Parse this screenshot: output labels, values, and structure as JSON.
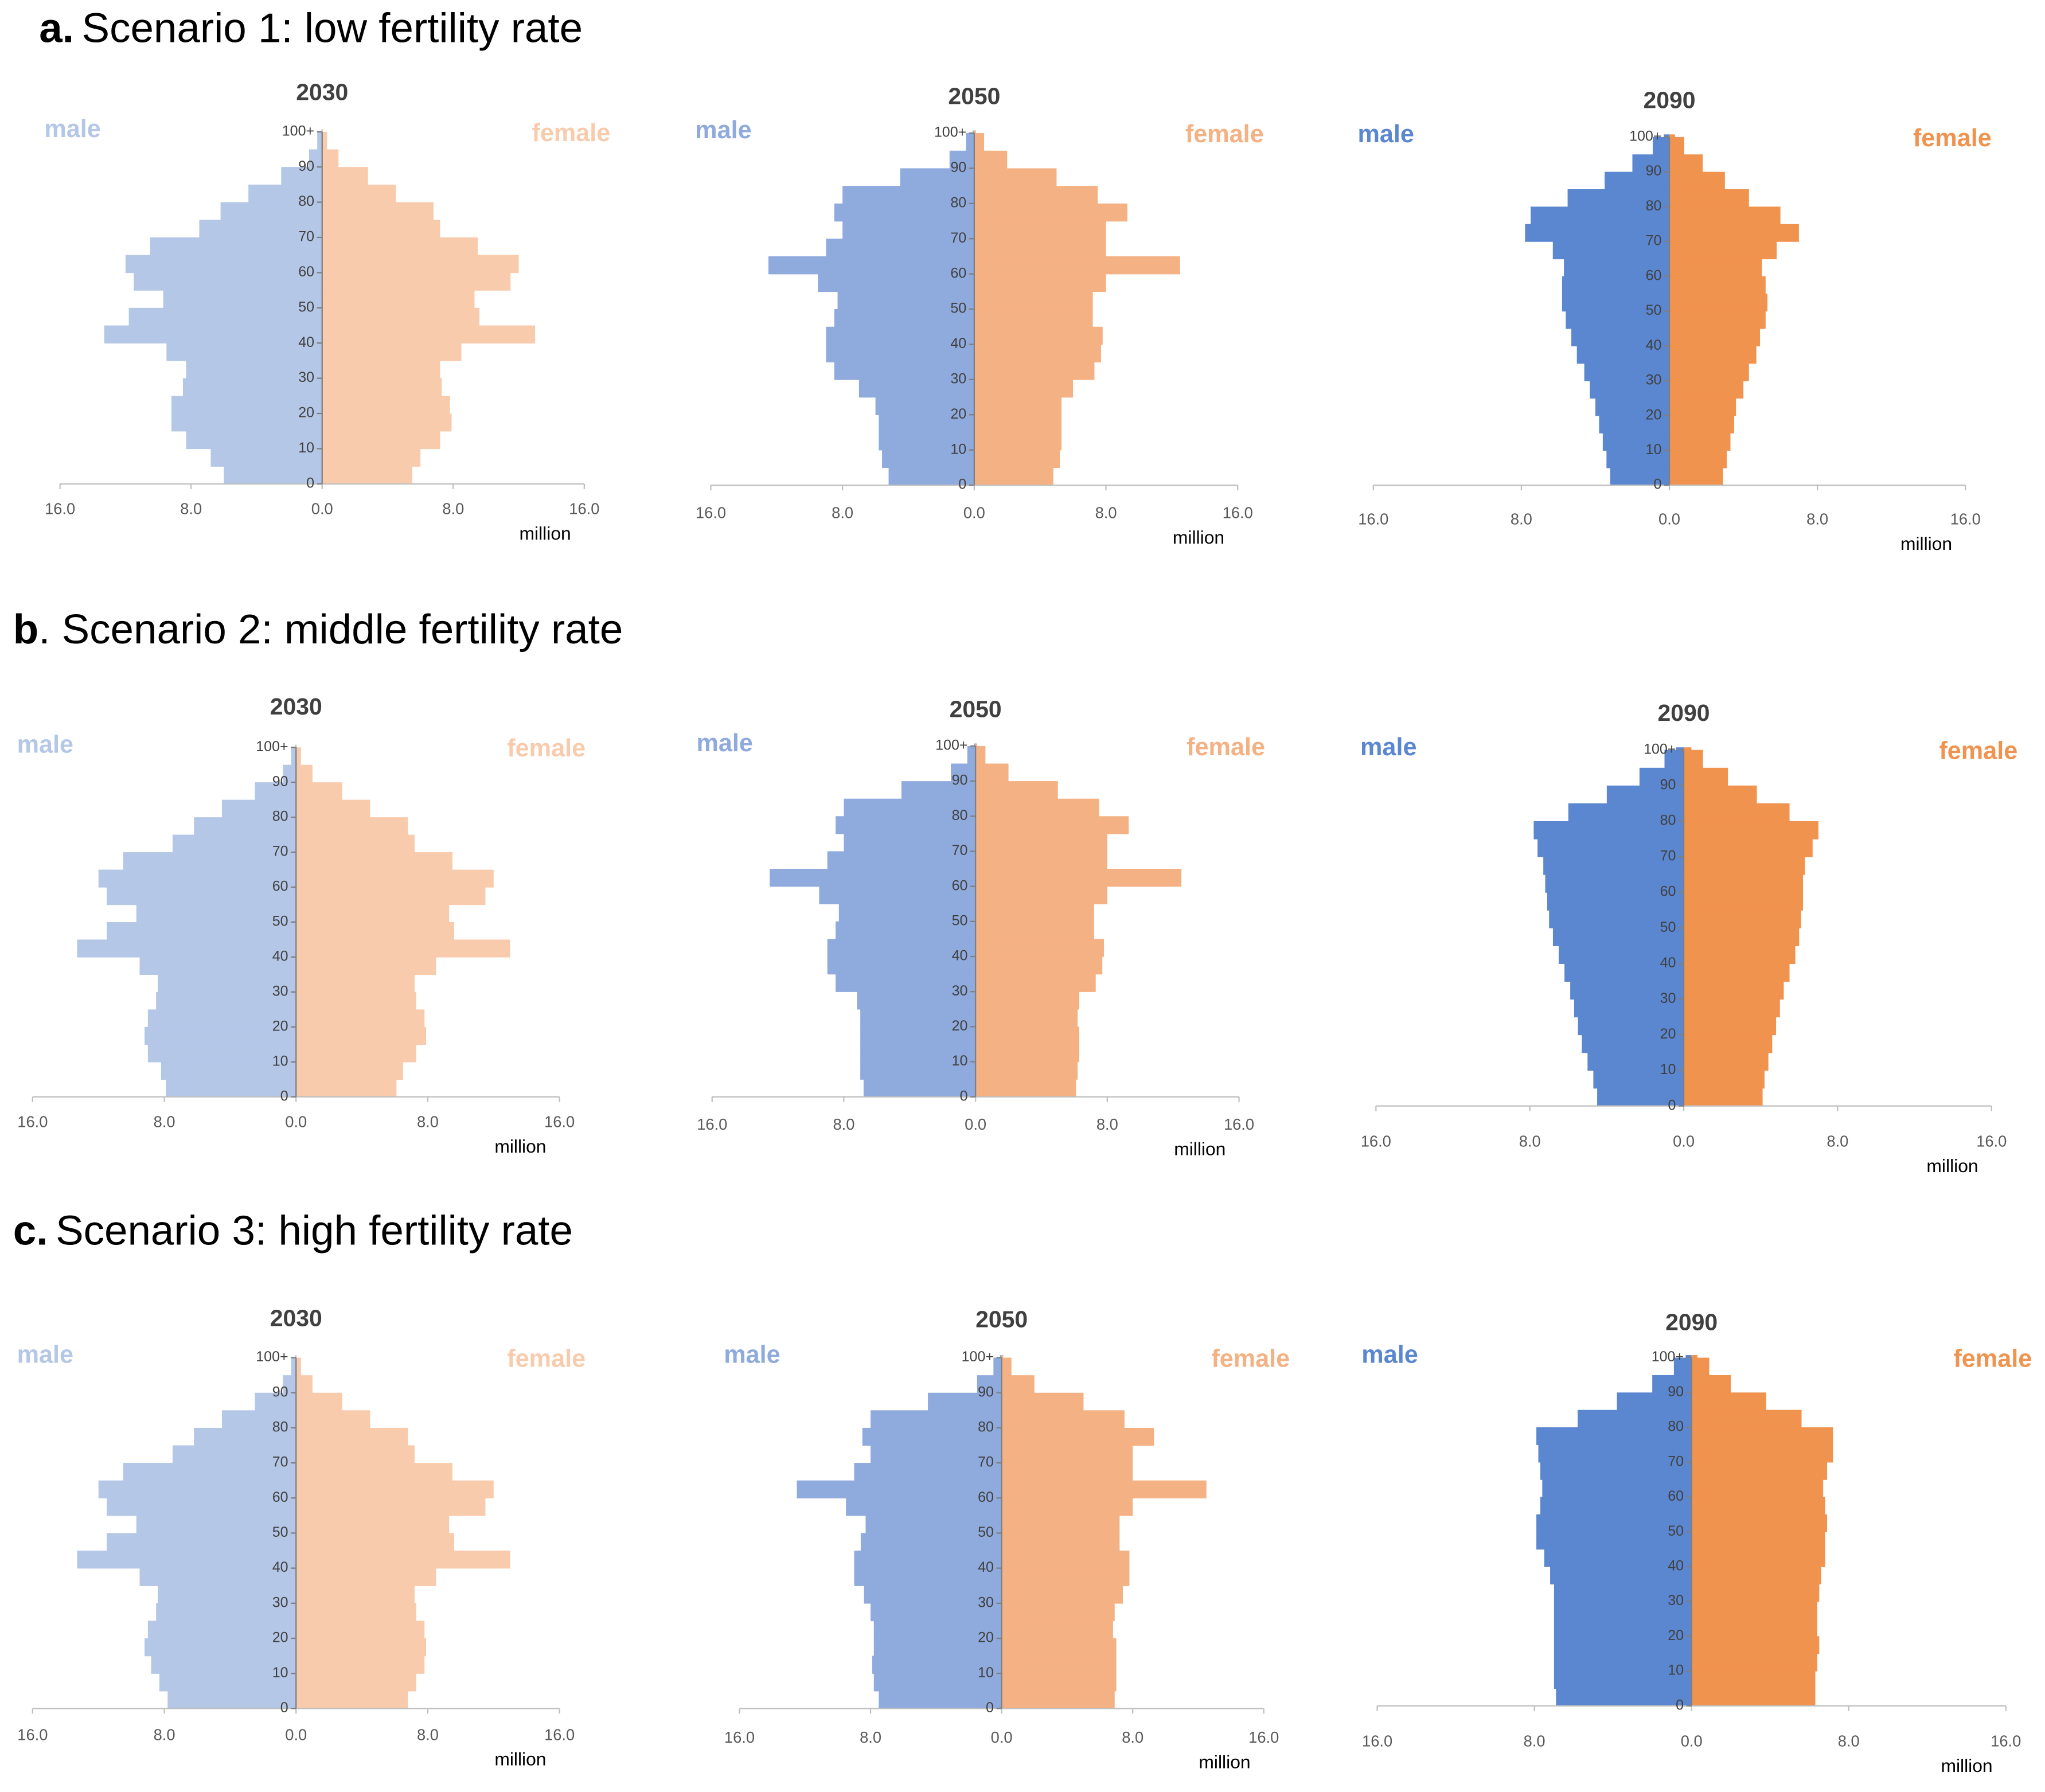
{
  "panels": [
    {
      "label": "a.",
      "title": "Scenario 1: low fertility rate"
    },
    {
      "label": "b",
      "title": ". Scenario 2: middle fertility rate"
    },
    {
      "label": "c.",
      "title": "Scenario 3: high fertility rate"
    }
  ],
  "chart_data": [
    {
      "type": "pyramid",
      "title": "2030",
      "xlabel": "million",
      "categories": [
        "0",
        null,
        "10",
        null,
        "20",
        null,
        "30",
        null,
        "40",
        null,
        "50",
        null,
        "60",
        null,
        "70",
        null,
        "80",
        null,
        "90",
        null,
        "100+"
      ],
      "xlim": [
        -16,
        16
      ],
      "xticks": [
        {
          "value": -16,
          "label": "16.0"
        },
        {
          "value": -8,
          "label": "8.0"
        },
        {
          "value": 0,
          "label": "0.0"
        },
        {
          "value": 8,
          "label": "8.0"
        },
        {
          "value": 16,
          "label": "16.0"
        }
      ],
      "series": [
        {
          "name": "male",
          "color": "#b4c7e7",
          "values": [
            6.0,
            6.8,
            8.3,
            9.2,
            9.2,
            8.5,
            8.3,
            9.5,
            13.3,
            11.8,
            9.7,
            11.5,
            12.0,
            10.5,
            7.5,
            6.2,
            4.5,
            2.5,
            0.8,
            0.3,
            0.05
          ]
        },
        {
          "name": "female",
          "color": "#f8cbad",
          "values": [
            5.5,
            6.0,
            7.2,
            7.9,
            7.8,
            7.3,
            7.2,
            8.5,
            13.0,
            9.6,
            9.3,
            11.5,
            12.0,
            9.5,
            7.2,
            6.8,
            4.5,
            2.8,
            1.0,
            0.3,
            0.05
          ]
        }
      ]
    },
    {
      "type": "pyramid",
      "title": "2050",
      "xlabel": "million",
      "categories": [
        "0",
        null,
        "10",
        null,
        "20",
        null,
        "30",
        null,
        "40",
        null,
        "50",
        null,
        "60",
        null,
        "70",
        null,
        "80",
        null,
        "90",
        null,
        "100+"
      ],
      "xlim": [
        -16,
        16
      ],
      "xticks": [
        {
          "value": -16,
          "label": "16.0"
        },
        {
          "value": -8,
          "label": "8.0"
        },
        {
          "value": 0,
          "label": "0.0"
        },
        {
          "value": 8,
          "label": "8.0"
        },
        {
          "value": 16,
          "label": "16.0"
        }
      ],
      "series": [
        {
          "name": "male",
          "color": "#8faadc",
          "values": [
            5.2,
            5.6,
            5.8,
            5.8,
            6.0,
            7.0,
            8.5,
            9.0,
            9.0,
            8.5,
            8.3,
            9.5,
            12.5,
            9.0,
            8.0,
            8.5,
            8.0,
            4.5,
            1.5,
            0.5,
            0.1
          ]
        },
        {
          "name": "female",
          "color": "#f4b183",
          "values": [
            4.8,
            5.2,
            5.3,
            5.3,
            5.3,
            6.0,
            7.3,
            7.7,
            7.8,
            7.2,
            7.2,
            8.0,
            12.5,
            8.0,
            8.0,
            9.3,
            7.5,
            5.0,
            2.0,
            0.6,
            0.1
          ]
        }
      ]
    },
    {
      "type": "pyramid",
      "title": "2090",
      "xlabel": "million",
      "categories": [
        "0",
        null,
        "10",
        null,
        "20",
        null,
        "30",
        null,
        "40",
        null,
        "50",
        null,
        "60",
        null,
        "70",
        null,
        "80",
        null,
        "90",
        null,
        "100+"
      ],
      "xlim": [
        -16,
        16
      ],
      "xticks": [
        {
          "value": -16,
          "label": "16.0"
        },
        {
          "value": -8,
          "label": "8.0"
        },
        {
          "value": 0,
          "label": "0.0"
        },
        {
          "value": 8,
          "label": "8.0"
        },
        {
          "value": 16,
          "label": "16.0"
        }
      ],
      "series": [
        {
          "name": "male",
          "color": "#5b87d0",
          "values": [
            3.2,
            3.4,
            3.6,
            3.8,
            4.0,
            4.3,
            4.6,
            5.0,
            5.3,
            5.6,
            5.8,
            5.8,
            5.7,
            6.3,
            7.8,
            7.5,
            5.5,
            3.5,
            2.0,
            0.9,
            0.3
          ]
        },
        {
          "name": "female",
          "color": "#f0934f",
          "values": [
            2.9,
            3.1,
            3.3,
            3.5,
            3.6,
            4.0,
            4.3,
            4.7,
            4.9,
            5.2,
            5.3,
            5.2,
            5.0,
            5.8,
            7.0,
            6.0,
            4.3,
            3.0,
            1.8,
            0.8,
            0.3
          ]
        }
      ]
    },
    {
      "type": "pyramid",
      "title": "2030",
      "xlabel": "million",
      "categories": [
        "0",
        null,
        "10",
        null,
        "20",
        null,
        "30",
        null,
        "40",
        null,
        "50",
        null,
        "60",
        null,
        "70",
        null,
        "80",
        null,
        "90",
        null,
        "100+"
      ],
      "xlim": [
        -16,
        16
      ],
      "xticks": [
        {
          "value": -16,
          "label": "16.0"
        },
        {
          "value": -8,
          "label": "8.0"
        },
        {
          "value": 0,
          "label": "0.0"
        },
        {
          "value": 8,
          "label": "8.0"
        },
        {
          "value": 16,
          "label": "16.0"
        }
      ],
      "series": [
        {
          "name": "male",
          "color": "#b4c7e7",
          "values": [
            7.9,
            8.2,
            9.0,
            9.2,
            9.0,
            8.5,
            8.4,
            9.5,
            13.3,
            11.5,
            9.7,
            11.5,
            12.0,
            10.5,
            7.5,
            6.2,
            4.5,
            2.5,
            0.8,
            0.3,
            0.05
          ]
        },
        {
          "name": "female",
          "color": "#f8cbad",
          "values": [
            6.1,
            6.5,
            7.3,
            7.9,
            7.8,
            7.3,
            7.2,
            8.5,
            13.0,
            9.6,
            9.3,
            11.5,
            12.0,
            9.5,
            7.2,
            6.8,
            4.5,
            2.8,
            1.0,
            0.3,
            0.05
          ]
        }
      ]
    },
    {
      "type": "pyramid",
      "title": "2050",
      "xlabel": "million",
      "categories": [
        "0",
        null,
        "10",
        null,
        "20",
        null,
        "30",
        null,
        "40",
        null,
        "50",
        null,
        "60",
        null,
        "70",
        null,
        "80",
        null,
        "90",
        null,
        "100+"
      ],
      "xlim": [
        -16,
        16
      ],
      "xticks": [
        {
          "value": -16,
          "label": "16.0"
        },
        {
          "value": -8,
          "label": "8.0"
        },
        {
          "value": 0,
          "label": "0.0"
        },
        {
          "value": 8,
          "label": "8.0"
        },
        {
          "value": 16,
          "label": "16.0"
        }
      ],
      "series": [
        {
          "name": "male",
          "color": "#8faadc",
          "values": [
            6.8,
            7.0,
            7.0,
            7.0,
            7.0,
            7.2,
            8.5,
            9.0,
            9.0,
            8.5,
            8.3,
            9.5,
            12.5,
            9.0,
            8.0,
            8.5,
            8.0,
            4.5,
            1.5,
            0.5,
            0.1
          ]
        },
        {
          "name": "female",
          "color": "#f4b183",
          "values": [
            6.1,
            6.2,
            6.3,
            6.3,
            6.2,
            6.3,
            7.3,
            7.7,
            7.8,
            7.2,
            7.2,
            8.0,
            12.5,
            8.0,
            8.0,
            9.3,
            7.5,
            5.0,
            2.0,
            0.6,
            0.1
          ]
        }
      ]
    },
    {
      "type": "pyramid",
      "title": "2090",
      "xlabel": "million",
      "categories": [
        "0",
        null,
        "10",
        null,
        "20",
        null,
        "30",
        null,
        "40",
        null,
        "50",
        null,
        "60",
        null,
        "70",
        null,
        "80",
        null,
        "90",
        null,
        "100+"
      ],
      "xlim": [
        -16,
        16
      ],
      "xticks": [
        {
          "value": -16,
          "label": "16.0"
        },
        {
          "value": -8,
          "label": "8.0"
        },
        {
          "value": 0,
          "label": "0.0"
        },
        {
          "value": 8,
          "label": "8.0"
        },
        {
          "value": 16,
          "label": "16.0"
        }
      ],
      "series": [
        {
          "name": "male",
          "color": "#5b87d0",
          "values": [
            4.5,
            4.7,
            5.0,
            5.3,
            5.5,
            5.7,
            5.9,
            6.2,
            6.5,
            6.8,
            7.0,
            7.1,
            7.2,
            7.3,
            7.6,
            7.8,
            6.0,
            4.0,
            2.3,
            1.0,
            0.4
          ]
        },
        {
          "name": "female",
          "color": "#f0934f",
          "values": [
            4.1,
            4.2,
            4.4,
            4.6,
            4.8,
            5.0,
            5.2,
            5.5,
            5.8,
            6.0,
            6.1,
            6.2,
            6.2,
            6.3,
            6.7,
            7.0,
            5.5,
            3.8,
            2.3,
            1.0,
            0.4
          ]
        }
      ]
    },
    {
      "type": "pyramid",
      "title": "2030",
      "xlabel": "million",
      "categories": [
        "0",
        null,
        "10",
        null,
        "20",
        null,
        "30",
        null,
        "40",
        null,
        "50",
        null,
        "60",
        null,
        "70",
        null,
        "80",
        null,
        "90",
        null,
        "100+"
      ],
      "xlim": [
        -16,
        16
      ],
      "xticks": [
        {
          "value": -16,
          "label": "16.0"
        },
        {
          "value": -8,
          "label": "8.0"
        },
        {
          "value": 0,
          "label": "0.0"
        },
        {
          "value": 8,
          "label": "8.0"
        },
        {
          "value": 16,
          "label": "16.0"
        }
      ],
      "series": [
        {
          "name": "male",
          "color": "#b4c7e7",
          "values": [
            7.8,
            8.3,
            8.8,
            9.2,
            9.0,
            8.5,
            8.4,
            9.5,
            13.3,
            11.5,
            9.7,
            11.5,
            12.0,
            10.5,
            7.5,
            6.2,
            4.5,
            2.5,
            0.8,
            0.3,
            0.05
          ]
        },
        {
          "name": "female",
          "color": "#f8cbad",
          "values": [
            6.8,
            7.3,
            7.8,
            7.9,
            7.8,
            7.3,
            7.2,
            8.5,
            13.0,
            9.6,
            9.3,
            11.5,
            12.0,
            9.5,
            7.2,
            6.8,
            4.5,
            2.8,
            1.0,
            0.3,
            0.05
          ]
        }
      ]
    },
    {
      "type": "pyramid",
      "title": "2050",
      "xlabel": "million",
      "categories": [
        "0",
        null,
        "10",
        null,
        "20",
        null,
        "30",
        null,
        "40",
        null,
        "50",
        null,
        "60",
        null,
        "70",
        null,
        "80",
        null,
        "90",
        null,
        "100+"
      ],
      "xlim": [
        -16,
        16
      ],
      "xticks": [
        {
          "value": -16,
          "label": "16.0"
        },
        {
          "value": -8,
          "label": "8.0"
        },
        {
          "value": 0,
          "label": "0.0"
        },
        {
          "value": 8,
          "label": "8.0"
        },
        {
          "value": 16,
          "label": "16.0"
        }
      ],
      "series": [
        {
          "name": "male",
          "color": "#8faadc",
          "values": [
            7.5,
            7.8,
            7.9,
            7.8,
            7.8,
            8.0,
            8.4,
            9.0,
            9.0,
            8.6,
            8.3,
            9.5,
            12.5,
            9.0,
            8.0,
            8.5,
            8.0,
            4.5,
            1.5,
            0.5,
            0.1
          ]
        },
        {
          "name": "female",
          "color": "#f4b183",
          "values": [
            6.9,
            7.0,
            7.0,
            7.0,
            6.8,
            6.9,
            7.4,
            7.8,
            7.8,
            7.2,
            7.2,
            8.0,
            12.5,
            8.0,
            8.0,
            9.3,
            7.5,
            5.0,
            2.0,
            0.6,
            0.1
          ]
        }
      ]
    },
    {
      "type": "pyramid",
      "title": "2090",
      "xlabel": "million",
      "categories": [
        "0",
        null,
        "10",
        null,
        "20",
        null,
        "30",
        null,
        "40",
        null,
        "50",
        null,
        "60",
        null,
        "70",
        null,
        "80",
        null,
        "90",
        null,
        "100+"
      ],
      "xlim": [
        -16,
        16
      ],
      "xticks": [
        {
          "value": -16,
          "label": "16.0"
        },
        {
          "value": -8,
          "label": "8.0"
        },
        {
          "value": 0,
          "label": "0.0"
        },
        {
          "value": 8,
          "label": "8.0"
        },
        {
          "value": 16,
          "label": "16.0"
        }
      ],
      "series": [
        {
          "name": "male",
          "color": "#5b87d0",
          "values": [
            6.9,
            7.0,
            7.0,
            7.0,
            7.0,
            7.0,
            7.0,
            7.2,
            7.5,
            7.9,
            7.9,
            7.7,
            7.6,
            7.7,
            7.8,
            7.9,
            5.8,
            3.8,
            2.0,
            0.9,
            0.3
          ]
        },
        {
          "name": "female",
          "color": "#f0934f",
          "values": [
            6.3,
            6.3,
            6.4,
            6.5,
            6.4,
            6.4,
            6.5,
            6.6,
            6.8,
            6.8,
            6.9,
            6.8,
            6.7,
            6.9,
            7.2,
            7.2,
            5.6,
            3.8,
            2.0,
            0.9,
            0.3
          ]
        }
      ]
    }
  ]
}
